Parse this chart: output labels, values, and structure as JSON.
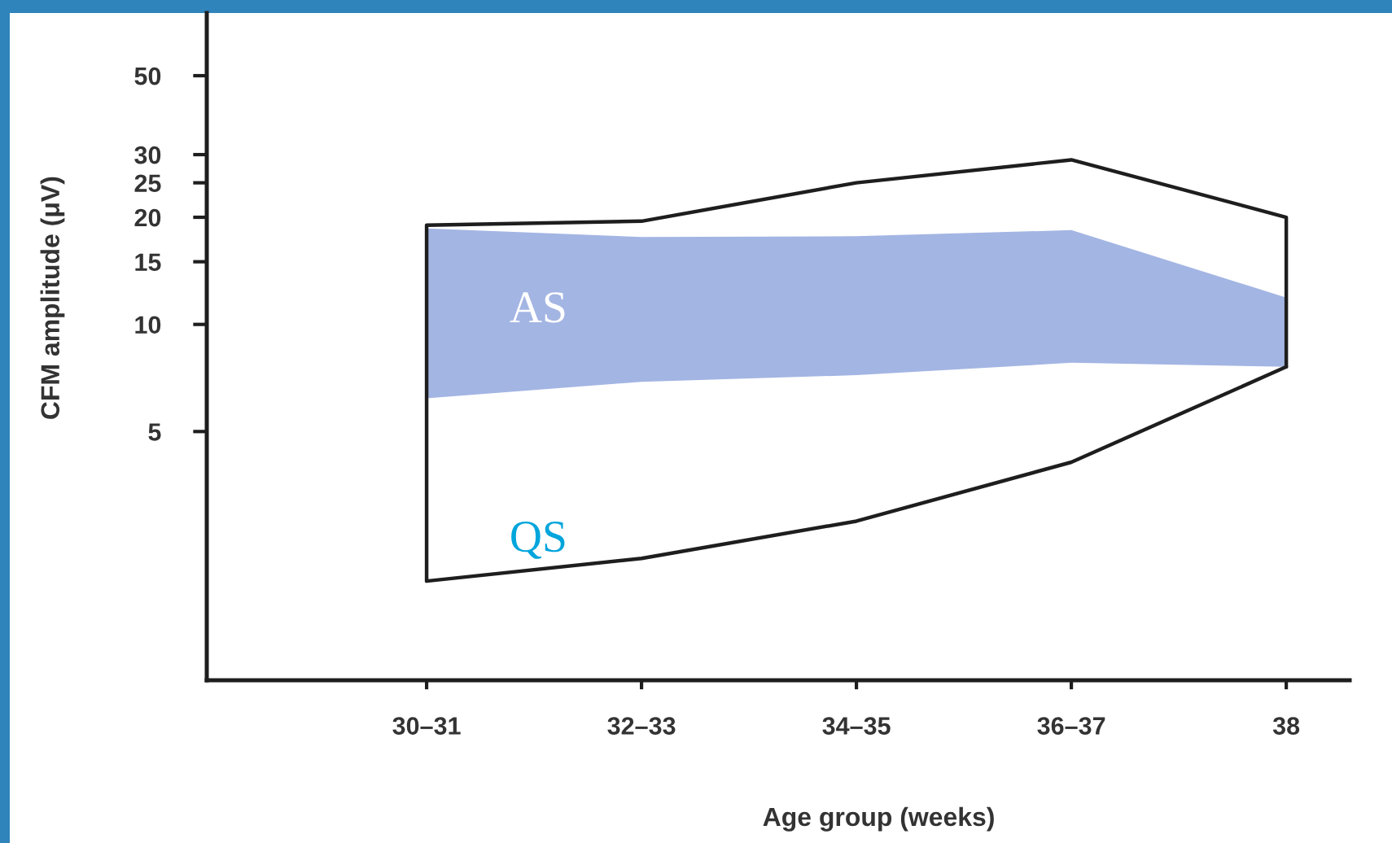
{
  "chart_data": {
    "type": "area",
    "xlabel": "Age group (weeks)",
    "ylabel": "CFM amplitude (μV)",
    "categories": [
      "30–31",
      "32–33",
      "34–35",
      "36–37",
      "38"
    ],
    "series": [
      {
        "name": "AS",
        "color": "#a3b5e3",
        "x": [
          "30–31",
          "32–33",
          "34–35",
          "36–37",
          "38",
          "38",
          "36–37",
          "34–35",
          "32–33",
          "30–31"
        ],
        "values": [
          18.6,
          17.6,
          17.7,
          18.4,
          11.9,
          7.6,
          7.8,
          7.2,
          6.9,
          6.2
        ]
      },
      {
        "name": "QS",
        "type": "line",
        "color": "#1e1e1e",
        "x": [
          "30–31",
          "30–31",
          "32–33",
          "34–35",
          "36–37",
          "38",
          "38"
        ],
        "values": [
          1.9,
          19,
          19.5,
          25,
          29,
          20,
          7.6
        ]
      },
      {
        "type": "line",
        "color": "#1e1e1e",
        "values": [
          1.9,
          2.2,
          2.8,
          4.1,
          7.6
        ]
      }
    ],
    "ylim": [
      1,
      75
    ],
    "yticks": [
      5,
      10,
      15,
      20,
      25,
      30,
      50
    ],
    "log": true
  }
}
